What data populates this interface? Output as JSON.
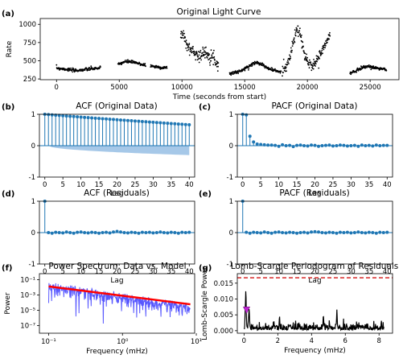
{
  "figure": {
    "panels": {
      "a": {
        "letter": "(a)",
        "title": "Original Light Curve"
      },
      "b": {
        "letter": "(b)",
        "title": "ACF (Original Data)"
      },
      "c": {
        "letter": "(c)",
        "title": "PACF (Original Data)"
      },
      "d": {
        "letter": "(d)",
        "title": "ACF (Residuals)"
      },
      "e": {
        "letter": "(e)",
        "title": "PACF (Residuals)"
      },
      "f": {
        "letter": "(f)",
        "title": "Power Spectrum: Data vs. Model"
      },
      "g": {
        "letter": "(g)",
        "title": "Lomb-Scargle Periodogram of Residuals"
      }
    }
  },
  "colors": {
    "points": "#000000",
    "stem": "#1f77b4",
    "confidence_band": "#a6c8e8",
    "spectrum_data": "#3b3bff",
    "model": "#ff0000",
    "threshold": "#d62728",
    "peak_marker": "#c026d3"
  },
  "chart_data": [
    {
      "id": "a",
      "type": "scatter",
      "title": "Original Light Curve",
      "xlabel": "Time (seconds from start)",
      "ylabel": "Rate",
      "xlim": [
        -1300,
        27300
      ],
      "ylim": [
        240,
        1080
      ],
      "xticks": [
        0,
        5000,
        10000,
        15000,
        20000,
        25000
      ],
      "yticks": [
        250,
        500,
        750,
        1000
      ],
      "segments": [
        {
          "x_start": 0,
          "x_end": 3500,
          "y": [
            400,
            385,
            365,
            375,
            390,
            400
          ]
        },
        {
          "x_start": 4900,
          "x_end": 7100,
          "y": [
            450,
            480,
            490,
            475,
            455,
            440
          ]
        },
        {
          "x_start": 7500,
          "x_end": 8800,
          "y": [
            430,
            420,
            410,
            405,
            400
          ]
        },
        {
          "x_start": 9900,
          "x_end": 12900,
          "y": [
            880,
            850,
            700,
            660,
            630,
            600,
            560,
            590,
            620,
            580,
            560,
            500,
            440
          ]
        },
        {
          "x_start": 13800,
          "x_end": 17900,
          "y": [
            320,
            340,
            350,
            380,
            420,
            460,
            480,
            450,
            400,
            380,
            360,
            340
          ]
        },
        {
          "x_start": 18000,
          "x_end": 21800,
          "y": [
            380,
            430,
            520,
            760,
            930,
            860,
            580,
            470,
            440,
            470,
            560,
            640,
            760,
            850
          ]
        },
        {
          "x_start": 23400,
          "x_end": 26300,
          "y": [
            330,
            350,
            390,
            415,
            420,
            410,
            400,
            390,
            370
          ]
        }
      ]
    },
    {
      "id": "b",
      "type": "stem",
      "title": "ACF (Original Data)",
      "xlabel": "Lag",
      "xlim": [
        -1.5,
        41.5
      ],
      "ylim": [
        -1,
        1
      ],
      "xticks": [
        0,
        5,
        10,
        15,
        20,
        25,
        30,
        35,
        40
      ],
      "yticks": [
        -1,
        0,
        1
      ],
      "lags": [
        0,
        40
      ],
      "values": [
        1.0,
        0.99,
        0.98,
        0.97,
        0.965,
        0.955,
        0.945,
        0.937,
        0.928,
        0.92,
        0.91,
        0.902,
        0.893,
        0.885,
        0.876,
        0.868,
        0.86,
        0.852,
        0.843,
        0.835,
        0.827,
        0.818,
        0.81,
        0.802,
        0.794,
        0.786,
        0.778,
        0.77,
        0.762,
        0.754,
        0.746,
        0.738,
        0.73,
        0.722,
        0.714,
        0.706,
        0.698,
        0.69,
        0.682,
        0.674,
        0.666
      ],
      "confidence_band_at_lag40": -0.3
    },
    {
      "id": "c",
      "type": "stem",
      "title": "PACF (Original Data)",
      "xlabel": "Lag",
      "xlim": [
        -1.5,
        41.5
      ],
      "ylim": [
        -1,
        1
      ],
      "xticks": [
        0,
        5,
        10,
        15,
        20,
        25,
        30,
        35,
        40
      ],
      "yticks": [
        -1,
        0,
        1
      ],
      "values": [
        1.0,
        0.98,
        0.3,
        0.12,
        0.05,
        0.04,
        0.03,
        0.02,
        0.02,
        0.01,
        -0.02,
        0.03,
        0.0,
        0.01,
        -0.03,
        0.01,
        0.02,
        0.0,
        -0.01,
        0.02,
        0.01,
        -0.02,
        0.0,
        0.01,
        0.02,
        -0.01,
        0.0,
        0.02,
        0.01,
        -0.01,
        0.0,
        0.01,
        -0.02,
        0.02,
        0.0,
        0.01,
        -0.01,
        0.02,
        0.0,
        0.01,
        0.01
      ]
    },
    {
      "id": "d",
      "type": "stem",
      "title": "ACF (Residuals)",
      "xlabel": "Lag",
      "xlim": [
        -1.5,
        41.5
      ],
      "ylim": [
        -1,
        1
      ],
      "xticks": [
        0,
        5,
        10,
        15,
        20,
        25,
        30,
        35,
        40
      ],
      "yticks": [
        -1,
        0,
        1
      ],
      "values": [
        1.0,
        0.0,
        -0.02,
        0.01,
        0.0,
        -0.01,
        0.02,
        0.0,
        -0.02,
        0.01,
        0.02,
        0.0,
        -0.01,
        0.01,
        0.0,
        -0.02,
        0.0,
        0.01,
        -0.01,
        0.02,
        0.04,
        0.02,
        0.0,
        -0.01,
        0.01,
        0.0,
        -0.02,
        0.01,
        0.0,
        0.01,
        -0.01,
        0.0,
        0.02,
        0.0,
        -0.01,
        0.01,
        0.0,
        -0.02,
        0.01,
        0.0,
        0.01
      ]
    },
    {
      "id": "e",
      "type": "stem",
      "title": "PACF (Residuals)",
      "xlabel": "Lag",
      "xlim": [
        -1.5,
        41.5
      ],
      "ylim": [
        -1,
        1
      ],
      "xticks": [
        0,
        5,
        10,
        15,
        20,
        25,
        30,
        35,
        40
      ],
      "yticks": [
        -1,
        0,
        1
      ],
      "values": [
        1.0,
        0.01,
        -0.02,
        0.01,
        0.0,
        -0.01,
        0.02,
        0.0,
        -0.02,
        0.01,
        0.02,
        0.0,
        -0.01,
        0.01,
        0.0,
        -0.02,
        0.0,
        0.01,
        -0.01,
        0.02,
        0.03,
        0.02,
        0.0,
        -0.01,
        0.01,
        0.0,
        -0.02,
        0.01,
        0.0,
        0.01,
        -0.01,
        0.0,
        0.02,
        0.0,
        -0.01,
        0.01,
        0.0,
        -0.02,
        0.01,
        0.0,
        0.01
      ]
    },
    {
      "id": "f",
      "type": "line",
      "title": "Power Spectrum: Data vs. Model",
      "xlabel": "Frequency (mHz)",
      "ylabel": "Power",
      "xscale": "log",
      "yscale": "log",
      "xlim": [
        0.075,
        9.5
      ],
      "ylim": [
        1e-08,
        0.6
      ],
      "xtick_values": [
        0.1,
        1,
        10
      ],
      "xtick_labels": [
        "10⁻¹",
        "10⁰",
        "10¹"
      ],
      "ytick_values": [
        1e-07,
        1e-05,
        0.001,
        0.1
      ],
      "ytick_labels": [
        "10⁻⁷",
        "10⁻⁵",
        "10⁻³",
        "10⁻¹"
      ],
      "series": [
        {
          "role": "data",
          "x": [
            0.1,
            8.3
          ],
          "log10_y_level": [
            -1.5,
            -4.3
          ]
        },
        {
          "role": "model",
          "x": [
            0.1,
            8.3
          ],
          "y": [
            0.013,
            6e-05
          ]
        }
      ]
    },
    {
      "id": "g",
      "type": "line",
      "title": "Lomb-Scargle Periodogram of Residuals",
      "xlabel": "Frequency (mHz)",
      "ylabel": "Lomb-Scargle Power",
      "xlim": [
        -0.4,
        8.8
      ],
      "ylim": [
        -0.0008,
        0.018
      ],
      "xticks": [
        0,
        2,
        4,
        6,
        8
      ],
      "yticks": [
        0.0,
        0.005,
        0.01,
        0.015
      ],
      "ytick_labels": [
        "0.000",
        "0.005",
        "0.010",
        "0.015"
      ],
      "threshold": 0.0167,
      "peak_marker": {
        "x": 0.15,
        "y": 0.0065
      },
      "notable_peaks": [
        {
          "x": 0.1,
          "y": 0.011
        },
        {
          "x": 0.3,
          "y": 0.006
        },
        {
          "x": 5.5,
          "y": 0.0055
        },
        {
          "x": 2.1,
          "y": 0.0035
        },
        {
          "x": 4.7,
          "y": 0.003
        }
      ]
    }
  ]
}
